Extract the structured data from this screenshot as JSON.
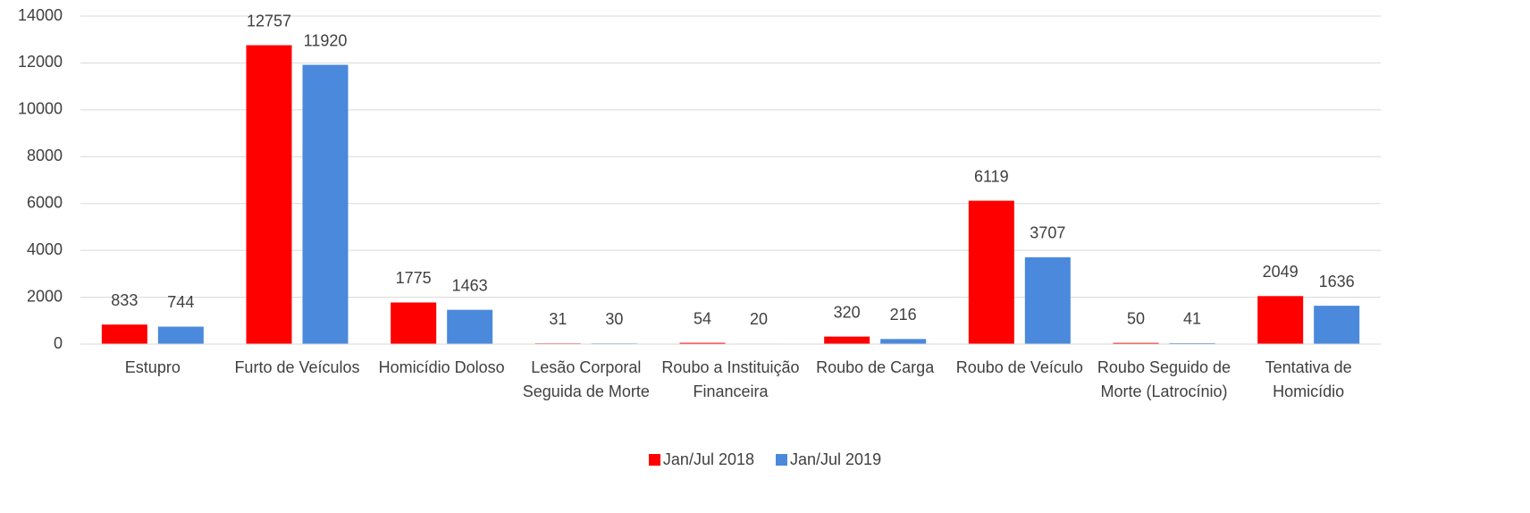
{
  "chart_data": {
    "type": "bar",
    "categories": [
      "Estupro",
      "Furto de Veículos",
      "Homicídio Doloso",
      "Lesão Corporal Seguida de Morte",
      "Roubo a Instituição Financeira",
      "Roubo de Carga",
      "Roubo de Veículo",
      "Roubo Seguido de Morte (Latrocínio)",
      "Tentativa de Homicídio"
    ],
    "series": [
      {
        "name": "Jan/Jul 2018",
        "color": "#ff0000",
        "values": [
          833,
          12757,
          1775,
          31,
          54,
          320,
          6119,
          50,
          2049
        ]
      },
      {
        "name": "Jan/Jul 2019",
        "color": "#4a89dc",
        "values": [
          744,
          11920,
          1463,
          30,
          20,
          216,
          3707,
          41,
          1636
        ]
      }
    ],
    "ylim": [
      0,
      14000
    ],
    "yticks": [
      0,
      2000,
      4000,
      6000,
      8000,
      10000,
      12000,
      14000
    ],
    "grid": true,
    "legend": "bottom"
  }
}
